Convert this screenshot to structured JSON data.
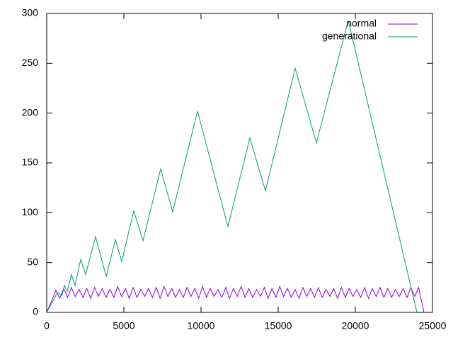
{
  "chart_data": {
    "type": "line",
    "xlim": [
      0,
      25000
    ],
    "xticks": [
      0,
      5000,
      10000,
      15000,
      20000,
      25000
    ],
    "ylim": [
      0,
      300
    ],
    "yticks": [
      0,
      50,
      100,
      150,
      200,
      250,
      300
    ],
    "legend": "top-right",
    "grid": false,
    "series": [
      {
        "name": "normal",
        "color": "#9400d3",
        "x": [
          0,
          600,
          850,
          1100,
          1350,
          1600,
          1850,
          2100,
          2350,
          2600,
          2850,
          3100,
          3350,
          3600,
          3850,
          4100,
          4350,
          4600,
          4850,
          5100,
          5350,
          5600,
          5850,
          6100,
          6350,
          6600,
          6850,
          7100,
          7350,
          7600,
          7850,
          8100,
          8350,
          8600,
          8850,
          9100,
          9350,
          9600,
          9850,
          10100,
          10350,
          10600,
          10850,
          11100,
          11350,
          11600,
          11850,
          12100,
          12350,
          12600,
          12850,
          13100,
          13350,
          13600,
          13850,
          14100,
          14350,
          14600,
          14850,
          15100,
          15350,
          15600,
          15850,
          16100,
          16350,
          16600,
          16850,
          17100,
          17350,
          17600,
          17850,
          18100,
          18350,
          18600,
          18850,
          19100,
          19350,
          19600,
          19850,
          20100,
          20350,
          20600,
          20850,
          21100,
          21350,
          21600,
          21850,
          22100,
          22350,
          22600,
          22850,
          23100,
          23350,
          23600,
          23850,
          24100,
          24450
        ],
        "values": [
          0,
          22,
          14,
          24,
          15,
          25,
          16,
          23,
          15,
          24,
          14,
          25,
          16,
          24,
          15,
          23,
          15,
          26,
          16,
          24,
          14,
          25,
          15,
          23,
          16,
          24,
          15,
          25,
          14,
          26,
          16,
          24,
          15,
          23,
          15,
          25,
          16,
          24,
          14,
          26,
          15,
          24,
          16,
          23,
          15,
          25,
          14,
          24,
          16,
          26,
          15,
          24,
          15,
          23,
          16,
          25,
          14,
          24,
          15,
          26,
          16,
          24,
          15,
          23,
          14,
          25,
          16,
          24,
          15,
          25,
          15,
          23,
          16,
          24,
          14,
          25,
          15,
          24,
          16,
          23,
          15,
          25,
          14,
          24,
          16,
          25,
          15,
          24,
          15,
          23,
          16,
          24,
          15,
          25,
          16,
          25,
          0
        ]
      },
      {
        "name": "generational",
        "color": "#009e73",
        "x": [
          0,
          700,
          1000,
          1147,
          1330,
          1600,
          1835,
          2200,
          2523,
          3165,
          3853,
          4450,
          4862,
          5642,
          6240,
          7385,
          8165,
          9771,
          11743,
          13165,
          14174,
          16101,
          17477,
          19541,
          23991
        ],
        "values": [
          0,
          20,
          17,
          27,
          21,
          38,
          27,
          53,
          38,
          76,
          36,
          73,
          51,
          102,
          72,
          144,
          101,
          202,
          86,
          175,
          122,
          245,
          170,
          293,
          0
        ]
      }
    ]
  }
}
